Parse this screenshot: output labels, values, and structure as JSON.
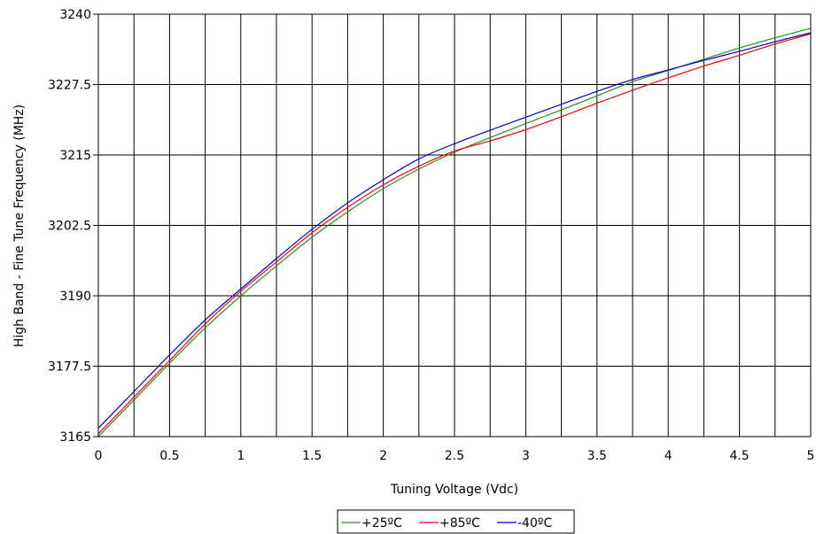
{
  "chart_data": {
    "type": "line",
    "title": "",
    "xlabel": "Tuning Voltage (Vdc)",
    "ylabel": "High Band - Fine Tune Frequency (MHz)",
    "xlim": [
      0,
      5
    ],
    "ylim": [
      3165,
      3240
    ],
    "x_ticks": [
      0,
      0.5,
      1,
      1.5,
      2,
      2.5,
      3,
      3.5,
      4,
      4.5,
      5
    ],
    "x_tick_labels": [
      "0",
      "0.5",
      "1",
      "1.5",
      "2",
      "2.5",
      "3",
      "3.5",
      "4",
      "4.5",
      "5"
    ],
    "x_gridlines_every": 0.25,
    "y_ticks": [
      3165,
      3177.5,
      3190,
      3202.5,
      3215,
      3227.5,
      3240
    ],
    "y_tick_labels": [
      "3165",
      "3177.5",
      "3190",
      "3202.5",
      "3215",
      "3227.5",
      "3240"
    ],
    "grid": true,
    "legend_position": "bottom-center",
    "x": [
      0,
      0.25,
      0.5,
      0.75,
      1,
      1.25,
      1.5,
      1.75,
      2,
      2.25,
      2.5,
      2.75,
      3,
      3.25,
      3.5,
      3.75,
      4,
      4.25,
      4.5,
      4.75,
      5
    ],
    "series": [
      {
        "name": "+25ºC",
        "color": "#2e8b22",
        "values": [
          3165,
          3171.5,
          3178,
          3184.3,
          3190,
          3195.3,
          3200.4,
          3204.9,
          3209,
          3212.5,
          3215.5,
          3218.1,
          3220.6,
          3223,
          3225.5,
          3228,
          3230,
          3232,
          3234,
          3235.8,
          3237.5
        ]
      },
      {
        "name": "+85ºC",
        "color": "#ff0000",
        "values": [
          3165.5,
          3172,
          3178.5,
          3185,
          3190.8,
          3196,
          3201.2,
          3205.7,
          3209.7,
          3213,
          3215.7,
          3217.5,
          3219.5,
          3221.8,
          3224.2,
          3226.5,
          3228.7,
          3230.8,
          3232.7,
          3234.7,
          3236.5
        ]
      },
      {
        "name": "-40ºC",
        "color": "#0000cc",
        "values": [
          3166.5,
          3173,
          3179.5,
          3185.7,
          3191.2,
          3196.6,
          3201.8,
          3206.5,
          3210.6,
          3214.3,
          3217,
          3219.4,
          3221.7,
          3224,
          3226.3,
          3228.4,
          3230.1,
          3231.8,
          3233.4,
          3235.1,
          3236.7
        ]
      }
    ]
  }
}
